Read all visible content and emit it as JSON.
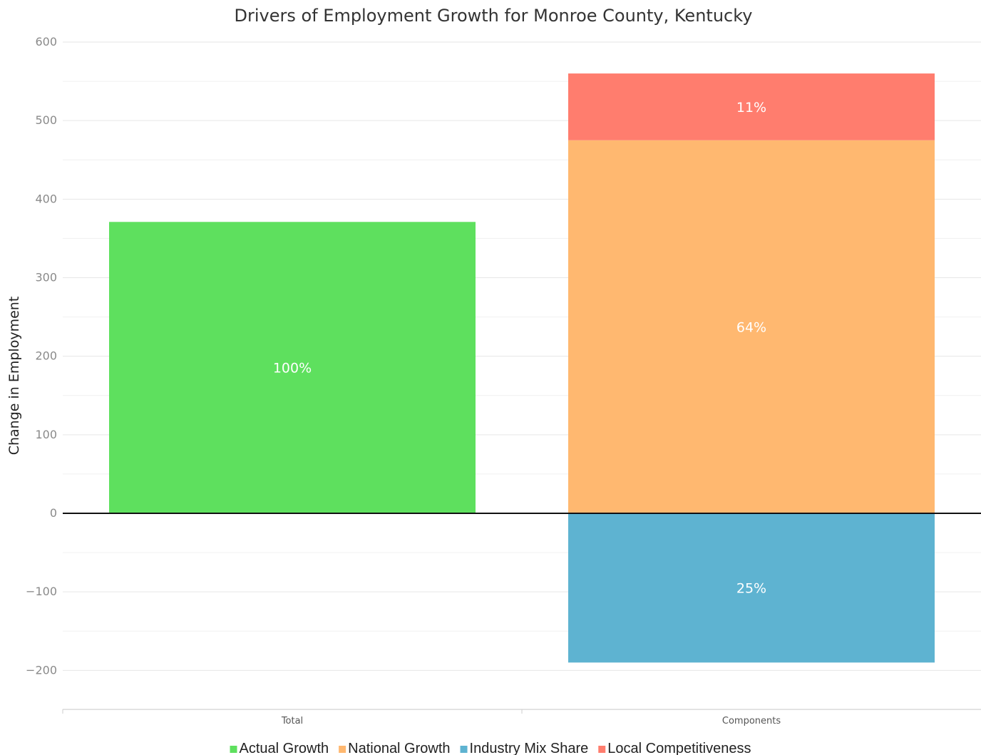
{
  "chart_data": {
    "type": "bar",
    "stacked": true,
    "title": "Drivers of Employment Growth for Monroe County, Kentucky",
    "xlabel": "",
    "ylabel": "Change in Employment",
    "categories": [
      "Total",
      "Components"
    ],
    "ylim": [
      -250,
      600
    ],
    "yticks": [
      600,
      500,
      400,
      300,
      200,
      100,
      0,
      -100,
      -200
    ],
    "ytick_labels": [
      "600",
      "500",
      "400",
      "300",
      "200",
      "100",
      "0",
      "−100",
      "−200"
    ],
    "grid": true,
    "legend_position": "bottom",
    "series": [
      {
        "name": "Actual Growth",
        "color": "#5ee05e",
        "values": [
          371,
          null
        ],
        "labels": [
          "100%",
          null
        ]
      },
      {
        "name": "National Growth",
        "color": "#ffb870",
        "values": [
          null,
          475
        ],
        "labels": [
          null,
          "64%"
        ]
      },
      {
        "name": "Industry Mix Share",
        "color": "#5eb3d1",
        "values": [
          null,
          -190
        ],
        "labels": [
          null,
          "25%"
        ]
      },
      {
        "name": "Local Competitiveness",
        "color": "#ff7d6e",
        "values": [
          null,
          85
        ],
        "labels": [
          null,
          "11%"
        ]
      }
    ]
  }
}
